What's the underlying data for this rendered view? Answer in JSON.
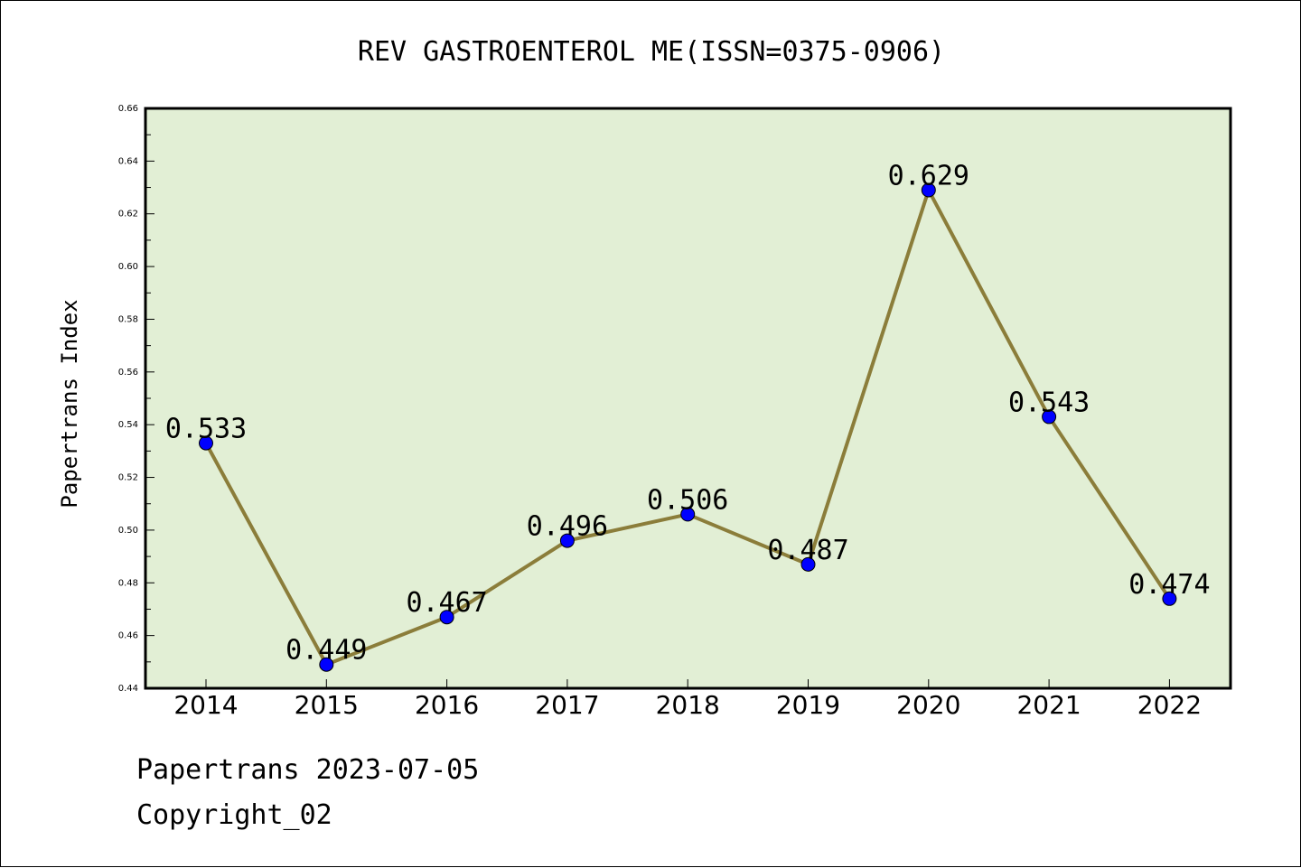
{
  "chart_data": {
    "type": "line",
    "title": "REV GASTROENTEROL ME(ISSN=0375-0906)",
    "xlabel": "",
    "ylabel": "Papertrans Index",
    "categories": [
      "2014",
      "2015",
      "2016",
      "2017",
      "2018",
      "2019",
      "2020",
      "2021",
      "2022"
    ],
    "values": [
      0.533,
      0.449,
      0.467,
      0.496,
      0.506,
      0.487,
      0.629,
      0.543,
      0.474
    ],
    "data_labels": [
      "0.533",
      "0.449",
      "0.467",
      "0.496",
      "0.506",
      "0.487",
      "0.629",
      "0.543",
      "0.474"
    ],
    "ylim": [
      0.44,
      0.66
    ],
    "yticks": [
      "0.44",
      "0.46",
      "0.48",
      "0.50",
      "0.52",
      "0.54",
      "0.56",
      "0.58",
      "0.60",
      "0.62",
      "0.64",
      "0.66"
    ],
    "grid": false,
    "legend": "none",
    "colors": {
      "plot_background": "#e2efd5",
      "line": "#8b7d3a",
      "marker": "#0000ff"
    }
  },
  "footer": {
    "date_line": "Papertrans 2023-07-05",
    "copyright_line": "Copyright_02"
  }
}
